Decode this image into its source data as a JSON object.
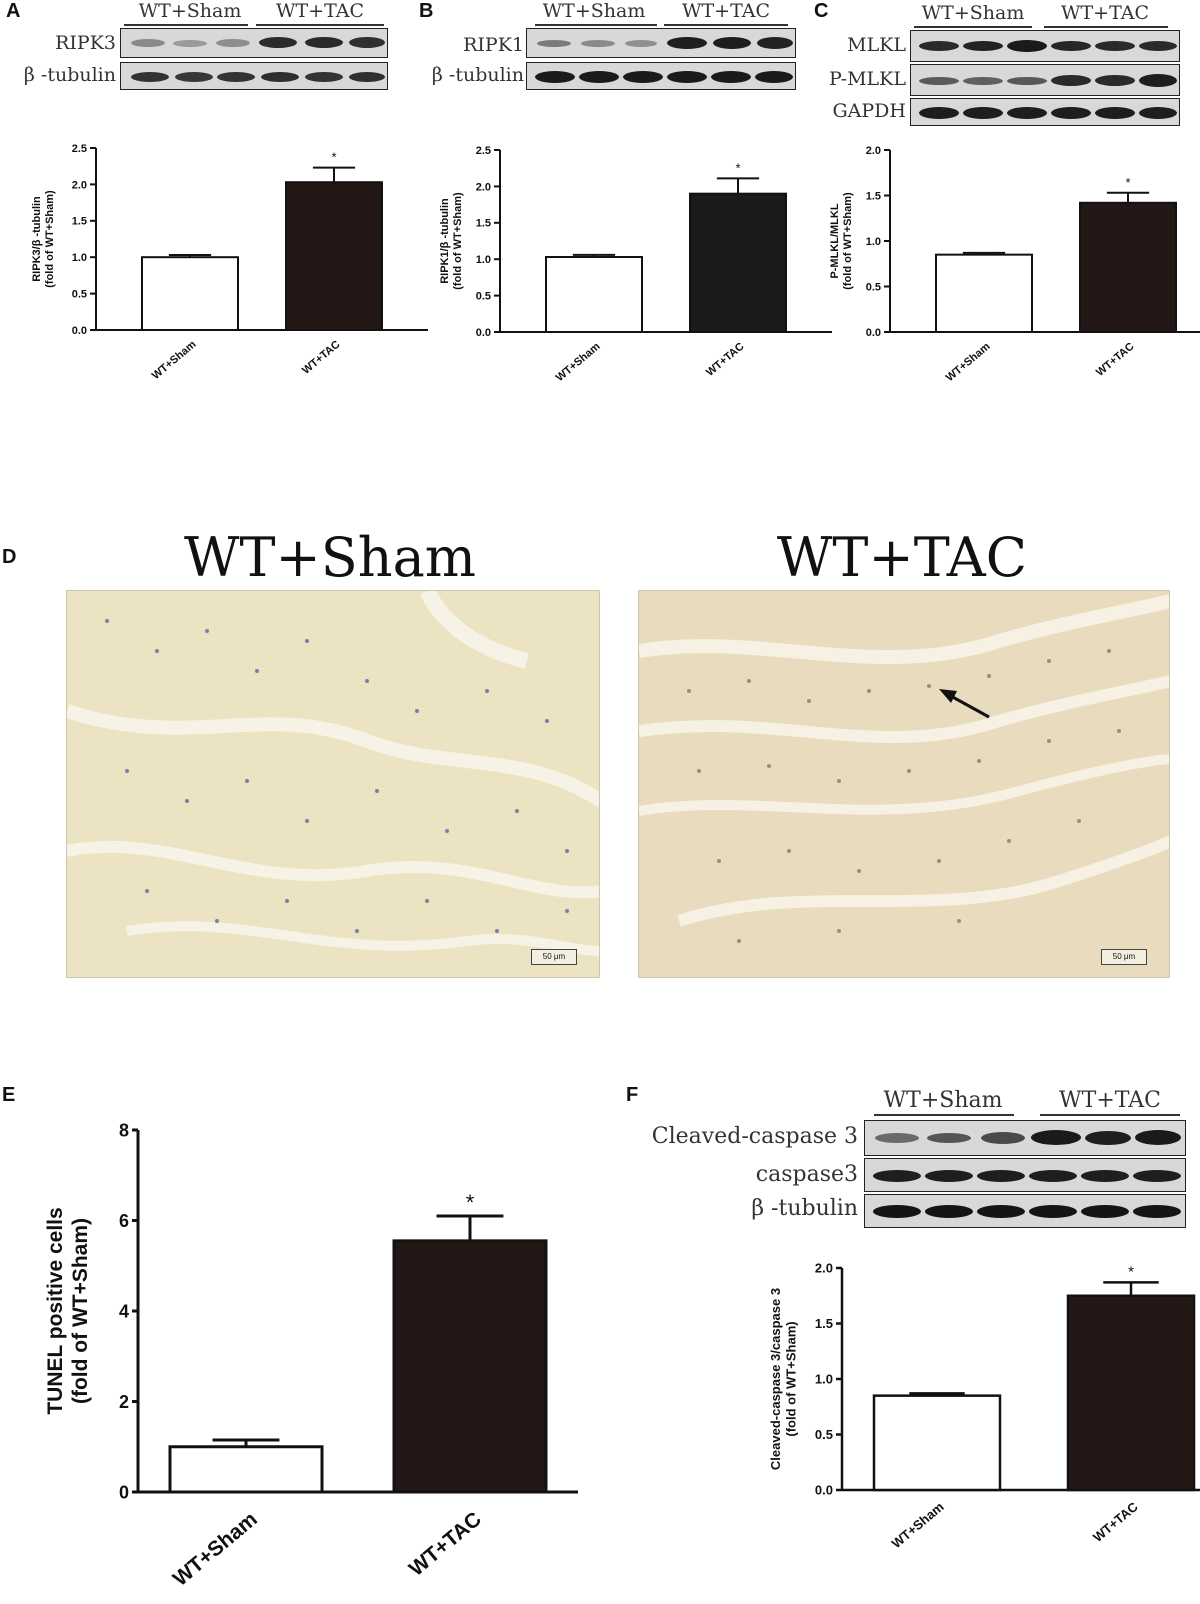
{
  "panels": {
    "A": {
      "letter": "A"
    },
    "B": {
      "letter": "B"
    },
    "C": {
      "letter": "C"
    },
    "D": {
      "letter": "D"
    },
    "E": {
      "letter": "E"
    },
    "F": {
      "letter": "F"
    }
  },
  "blots": {
    "groups": {
      "sham": "WT+Sham",
      "tac": "WT+TAC"
    },
    "A": {
      "rows": [
        "RIPK3",
        "β -tubulin"
      ]
    },
    "B": {
      "rows": [
        "RIPK1",
        "β -tubulin"
      ]
    },
    "C": {
      "rows": [
        "MLKL",
        "P-MLKL",
        "GAPDH"
      ]
    },
    "F": {
      "rows": [
        "Cleaved-caspase 3",
        "caspase3",
        "β -tubulin"
      ]
    }
  },
  "micrographs": {
    "left_title": "WT+Sham",
    "right_title": "WT+TAC",
    "scale_bar": "50 μm"
  },
  "chart_data": [
    {
      "id": "A",
      "type": "bar",
      "categories": [
        "WT+Sham",
        "WT+TAC"
      ],
      "values": [
        1.0,
        2.03
      ],
      "errors": [
        0.03,
        0.2
      ],
      "significance": [
        "",
        "*"
      ],
      "ylabel": "RIPK3/β -tubulin",
      "ylabel2": "(fold of WT+Sham)",
      "ylim": [
        0,
        2.5
      ],
      "yticks": [
        "0.0",
        "0.5",
        "1.0",
        "1.5",
        "2.0",
        "2.5"
      ],
      "colors": [
        "#ffffff",
        "#231815"
      ]
    },
    {
      "id": "B",
      "type": "bar",
      "categories": [
        "WT+Sham",
        "WT+TAC"
      ],
      "values": [
        1.03,
        1.9
      ],
      "errors": [
        0.03,
        0.21
      ],
      "significance": [
        "",
        "*"
      ],
      "ylabel": "RIPK1/β -tubulin",
      "ylabel2": "(fold of WT+Sham)",
      "ylim": [
        0,
        2.5
      ],
      "yticks": [
        "0.0",
        "0.5",
        "1.0",
        "1.5",
        "2.0",
        "2.5"
      ],
      "colors": [
        "#ffffff",
        "#1a1a1a"
      ]
    },
    {
      "id": "C",
      "type": "bar",
      "categories": [
        "WT+Sham",
        "WT+TAC"
      ],
      "values": [
        0.85,
        1.42
      ],
      "errors": [
        0.02,
        0.11
      ],
      "significance": [
        "",
        "*"
      ],
      "ylabel": "P-MLKL/MLKL",
      "ylabel2": "(fold of WT+Sham)",
      "ylim": [
        0,
        2.0
      ],
      "yticks": [
        "0.0",
        "0.5",
        "1.0",
        "1.5",
        "2.0"
      ],
      "colors": [
        "#ffffff",
        "#231815"
      ]
    },
    {
      "id": "E",
      "type": "bar",
      "categories": [
        "WT+Sham",
        "WT+TAC"
      ],
      "values": [
        1.0,
        5.55
      ],
      "errors": [
        0.15,
        0.55
      ],
      "significance": [
        "",
        "*"
      ],
      "ylabel": "TUNEL positive cells",
      "ylabel2": "(fold of WT+Sham)",
      "ylim": [
        0,
        8
      ],
      "yticks": [
        "0",
        "2",
        "4",
        "6",
        "8"
      ],
      "colors": [
        "#ffffff",
        "#231815"
      ]
    },
    {
      "id": "F",
      "type": "bar",
      "categories": [
        "WT+Sham",
        "WT+TAC"
      ],
      "values": [
        0.85,
        1.75
      ],
      "errors": [
        0.02,
        0.12
      ],
      "significance": [
        "",
        "*"
      ],
      "ylabel": "Cleaved-caspase 3/caspase 3",
      "ylabel2": "(fold of WT+Sham)",
      "ylim": [
        0,
        2.0
      ],
      "yticks": [
        "0.0",
        "0.5",
        "1.0",
        "1.5",
        "2.0"
      ],
      "colors": [
        "#ffffff",
        "#231815"
      ]
    }
  ]
}
